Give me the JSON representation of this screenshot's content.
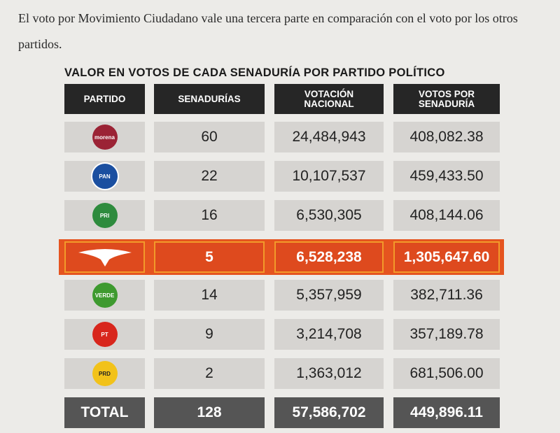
{
  "paragraph": "El voto por Movimiento Ciudadano vale una tercera parte en comparación con el voto por los otros partidos.",
  "table": {
    "title": "VALOR EN VOTOS DE CADA SENADURÍA POR PARTIDO POLÍTICO",
    "headers": [
      "PARTIDO",
      "SENADURÍAS",
      "VOTACIÓN NACIONAL",
      "VOTOS POR SENADURÍA"
    ],
    "rows": [
      {
        "logo": "morena",
        "seats": "60",
        "votes": "24,484,943",
        "per_seat": "408,082.38"
      },
      {
        "logo": "PAN",
        "seats": "22",
        "votes": "10,107,537",
        "per_seat": "459,433.50"
      },
      {
        "logo": "PRI",
        "seats": "16",
        "votes": "6,530,305",
        "per_seat": "408,144.06"
      },
      {
        "seats": "5",
        "votes": "6,528,238",
        "per_seat": "1,305,647.60"
      },
      {
        "logo": "VERDE",
        "seats": "14",
        "votes": "5,357,959",
        "per_seat": "382,711.36"
      },
      {
        "logo": "PT",
        "seats": "9",
        "votes": "3,214,708",
        "per_seat": "357,189.78"
      },
      {
        "logo": "PRD",
        "seats": "2",
        "votes": "1,363,012",
        "per_seat": "681,506.00"
      }
    ],
    "total": {
      "label": "TOTAL",
      "seats": "128",
      "votes": "57,586,702",
      "per_seat": "449,896.11"
    }
  }
}
